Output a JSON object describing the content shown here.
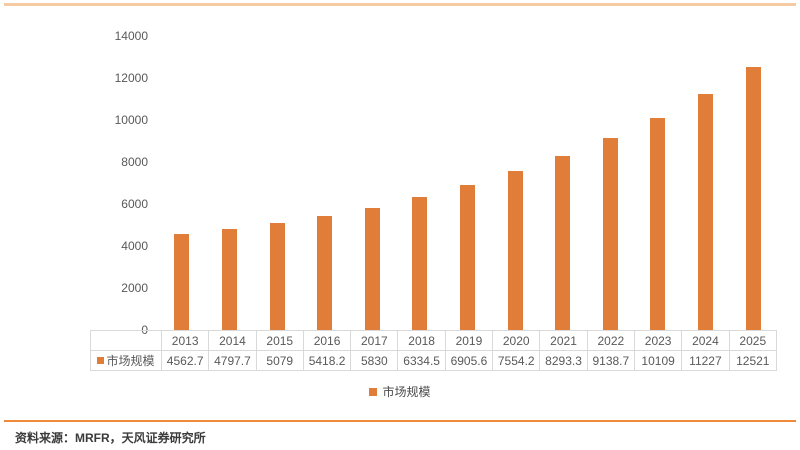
{
  "chart_data": {
    "type": "bar",
    "title": "",
    "categories": [
      "2013",
      "2014",
      "2015",
      "2016",
      "2017",
      "2018",
      "2019",
      "2020",
      "2021",
      "2022",
      "2023",
      "2024",
      "2025"
    ],
    "series": [
      {
        "name": "市场规模",
        "values": [
          4562.7,
          4797.7,
          5079,
          5418.2,
          5830,
          6334.5,
          6905.6,
          7554.2,
          8293.3,
          9138.7,
          10109,
          11227,
          12521
        ]
      }
    ],
    "value_labels": [
      "4562.7",
      "4797.7",
      "5079",
      "5418.2",
      "5830",
      "6334.5",
      "6905.6",
      "7554.2",
      "8293.3",
      "9138.7",
      "10109",
      "11227",
      "12521"
    ],
    "xlabel": "",
    "ylabel": "",
    "ylim": [
      0,
      14000
    ],
    "yticks": [
      0,
      2000,
      4000,
      6000,
      8000,
      10000,
      12000,
      14000
    ],
    "grid": false,
    "legend_position": "bottom",
    "data_table_shown": true
  },
  "colors": {
    "bar": "#E07E39",
    "top_rule": "#F6CBA4",
    "bottom_rule": "#F08A38",
    "table_border": "#D9D9D9",
    "axis_text": "#595959"
  },
  "source": {
    "text": "资料来源：MRFR，天风证券研究所"
  }
}
